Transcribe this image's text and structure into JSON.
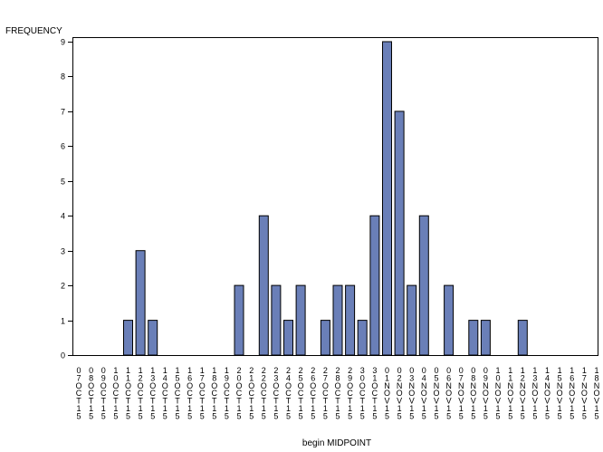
{
  "chart_data": {
    "type": "bar",
    "ylabel": "FREQUENCY",
    "xlabel": "begin MIDPOINT",
    "ylim": [
      0,
      9
    ],
    "yticks": [
      "0",
      "1",
      "2",
      "3",
      "4",
      "5",
      "6",
      "7",
      "8",
      "9"
    ],
    "grid": false,
    "categories": [
      "07OCT15",
      "08OCT15",
      "09OCT15",
      "10OCT15",
      "11OCT15",
      "12OCT15",
      "13OCT15",
      "14OCT15",
      "15OCT15",
      "16OCT15",
      "17OCT15",
      "18OCT15",
      "19OCT15",
      "20OCT15",
      "21OCT15",
      "22OCT15",
      "23OCT15",
      "24OCT15",
      "25OCT15",
      "26OCT15",
      "27OCT15",
      "28OCT15",
      "29OCT15",
      "30OCT15",
      "31OCT15",
      "01NOV15",
      "02NOV15",
      "03NOV15",
      "04NOV15",
      "05NOV15",
      "06NOV15",
      "07NOV15",
      "08NOV15",
      "09NOV15",
      "10NOV15",
      "11NOV15",
      "12NOV15",
      "13NOV15",
      "14NOV15",
      "15NOV15",
      "16NOV15",
      "17NOV15",
      "18NOV15"
    ],
    "values": [
      0,
      0,
      0,
      0,
      1,
      3,
      1,
      0,
      0,
      0,
      0,
      0,
      0,
      2,
      0,
      4,
      2,
      1,
      2,
      0,
      1,
      2,
      2,
      1,
      4,
      9,
      7,
      2,
      4,
      0,
      2,
      0,
      1,
      1,
      0,
      0,
      1,
      0,
      0,
      0,
      0,
      0,
      0
    ],
    "colors": {
      "bar_fill": "#6a7fb8",
      "bar_stroke": "#000000"
    }
  }
}
